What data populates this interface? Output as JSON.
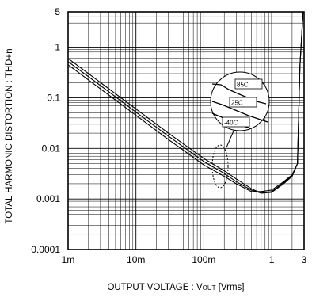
{
  "chart_data": {
    "type": "line",
    "xlabel": "OUTPUT VOLTAGE : V",
    "xlabel_sub": "OUT",
    "xlabel_unit": " [Vrms]",
    "ylabel": "TOTAL HARMONIC DISTORTION : THD+n",
    "x_scale": "log",
    "y_scale": "log",
    "xlim": [
      0.001,
      3
    ],
    "ylim": [
      0.0001,
      5
    ],
    "grid": true,
    "x_ticks": [
      {
        "value": 0.001,
        "label": "1m"
      },
      {
        "value": 0.01,
        "label": "10m"
      },
      {
        "value": 0.1,
        "label": "100m"
      },
      {
        "value": 1,
        "label": "1"
      },
      {
        "value": 3,
        "label": "3"
      }
    ],
    "y_ticks": [
      {
        "value": 0.0001,
        "label": "0.0001"
      },
      {
        "value": 0.001,
        "label": "0.001"
      },
      {
        "value": 0.01,
        "label": "0.01"
      },
      {
        "value": 0.1,
        "label": "0.1"
      },
      {
        "value": 1,
        "label": "1"
      },
      {
        "value": 5,
        "label": "5"
      }
    ],
    "series": [
      {
        "name": "85C",
        "x": [
          0.001,
          0.003,
          0.01,
          0.03,
          0.1,
          0.2,
          0.3,
          0.5,
          0.7,
          1.0,
          1.5,
          2.0,
          2.4,
          2.6,
          2.9
        ],
        "y": [
          0.6,
          0.2,
          0.06,
          0.02,
          0.0063,
          0.0036,
          0.0025,
          0.0016,
          0.0013,
          0.00135,
          0.002,
          0.0028,
          0.005,
          0.4,
          5
        ]
      },
      {
        "name": "25C",
        "x": [
          0.001,
          0.003,
          0.01,
          0.03,
          0.1,
          0.2,
          0.3,
          0.5,
          0.7,
          1.0,
          1.5,
          2.0,
          2.4,
          2.6,
          2.9
        ],
        "y": [
          0.52,
          0.175,
          0.052,
          0.0175,
          0.0055,
          0.0032,
          0.0022,
          0.0015,
          0.0013,
          0.0014,
          0.0021,
          0.0029,
          0.005,
          0.4,
          5
        ]
      },
      {
        "name": "-40C",
        "x": [
          0.001,
          0.003,
          0.01,
          0.03,
          0.1,
          0.2,
          0.3,
          0.5,
          0.7,
          1.0,
          1.5,
          2.0,
          2.4,
          2.6,
          2.9
        ],
        "y": [
          0.45,
          0.15,
          0.045,
          0.015,
          0.0047,
          0.0028,
          0.002,
          0.0014,
          0.0014,
          0.0015,
          0.0022,
          0.003,
          0.005,
          0.4,
          5
        ]
      }
    ],
    "annotation_labels": [
      "85C",
      "25C",
      "-40C"
    ]
  }
}
